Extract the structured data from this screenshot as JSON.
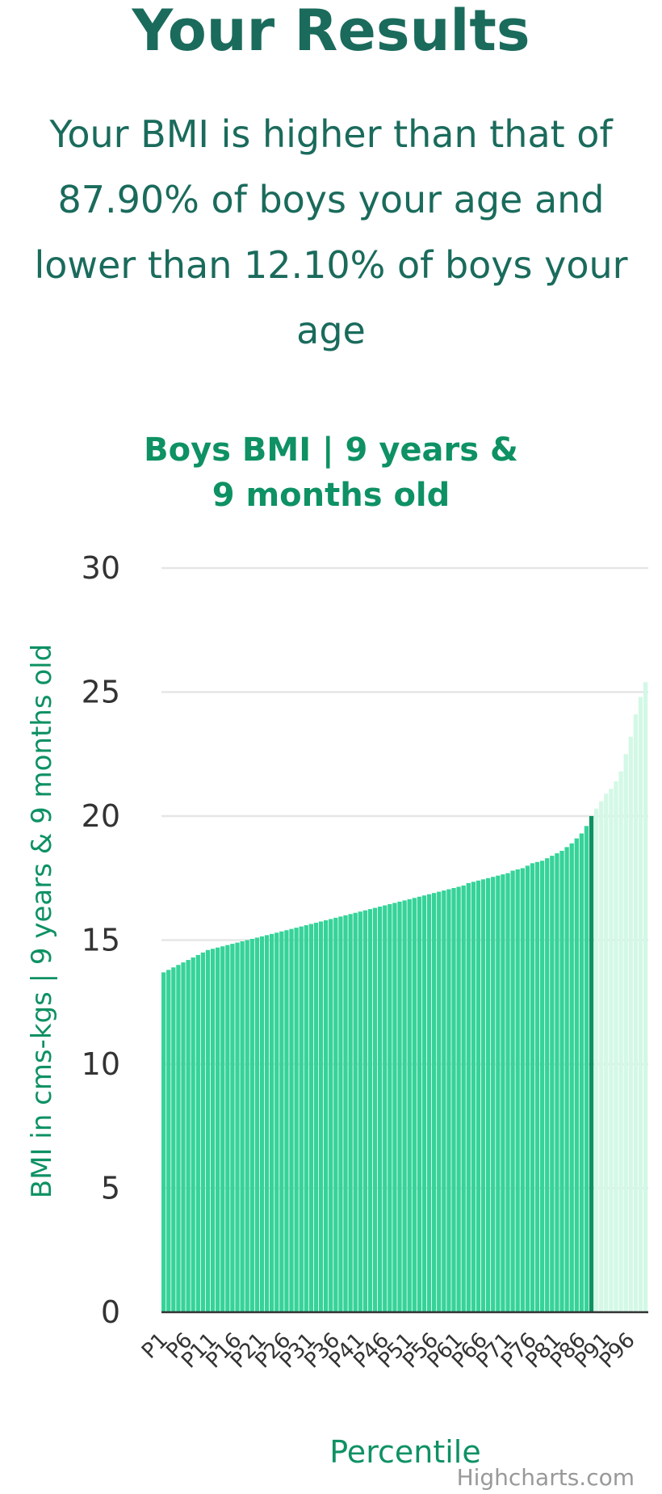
{
  "heading": "Your Results",
  "summary": "Your BMI is higher than that of 87.90% of boys your age and lower than 12.10% of boys your age",
  "credits": "Highcharts.com",
  "colors": {
    "bar": "#36d399",
    "bar_highlight": "#0e9163",
    "bar_above": "#d3f8e6",
    "title": "#0e9163",
    "heading": "#1a6b5c",
    "grid": "#e6e6e6",
    "axis_text": "#333333"
  },
  "chart_data": {
    "type": "bar",
    "title": "Boys BMI | 9 years & 9 months old",
    "xlabel": "Percentile",
    "ylabel": "BMI in cms-kgs | 9 years & 9 months old",
    "ylim": [
      0,
      30
    ],
    "yticks": [
      0,
      5,
      10,
      15,
      20,
      25,
      30
    ],
    "grid": true,
    "highlight_category": "P88",
    "categories": [
      "P1",
      "P2",
      "P3",
      "P4",
      "P5",
      "P6",
      "P7",
      "P8",
      "P9",
      "P10",
      "P11",
      "P12",
      "P13",
      "P14",
      "P15",
      "P16",
      "P17",
      "P18",
      "P19",
      "P20",
      "P21",
      "P22",
      "P23",
      "P24",
      "P25",
      "P26",
      "P27",
      "P28",
      "P29",
      "P30",
      "P31",
      "P32",
      "P33",
      "P34",
      "P35",
      "P36",
      "P37",
      "P38",
      "P39",
      "P40",
      "P41",
      "P42",
      "P43",
      "P44",
      "P45",
      "P46",
      "P47",
      "P48",
      "P49",
      "P50",
      "P51",
      "P52",
      "P53",
      "P54",
      "P55",
      "P56",
      "P57",
      "P58",
      "P59",
      "P60",
      "P61",
      "P62",
      "P63",
      "P64",
      "P65",
      "P66",
      "P67",
      "P68",
      "P69",
      "P70",
      "P71",
      "P72",
      "P73",
      "P74",
      "P75",
      "P76",
      "P77",
      "P78",
      "P79",
      "P80",
      "P81",
      "P82",
      "P83",
      "P84",
      "P85",
      "P86",
      "P87",
      "P88",
      "P89",
      "P90",
      "P91",
      "P92",
      "P93",
      "P94",
      "P95",
      "P96",
      "P97",
      "P98",
      "P99"
    ],
    "category_labels_shown": [
      "P1",
      "P6",
      "P11",
      "P16",
      "P21",
      "P26",
      "P31",
      "P36",
      "P41",
      "P46",
      "P51",
      "P56",
      "P61",
      "P66",
      "P71",
      "P76",
      "P81",
      "P86",
      "P91",
      "P96"
    ],
    "values": [
      13.7,
      13.8,
      13.9,
      14.0,
      14.1,
      14.2,
      14.3,
      14.4,
      14.5,
      14.6,
      14.65,
      14.7,
      14.75,
      14.8,
      14.85,
      14.9,
      14.95,
      15.0,
      15.05,
      15.1,
      15.15,
      15.2,
      15.25,
      15.3,
      15.35,
      15.4,
      15.45,
      15.5,
      15.55,
      15.6,
      15.65,
      15.7,
      15.75,
      15.8,
      15.85,
      15.9,
      15.95,
      16.0,
      16.05,
      16.1,
      16.15,
      16.2,
      16.25,
      16.3,
      16.35,
      16.4,
      16.45,
      16.5,
      16.55,
      16.6,
      16.65,
      16.7,
      16.75,
      16.8,
      16.85,
      16.9,
      16.95,
      17.0,
      17.05,
      17.1,
      17.15,
      17.2,
      17.3,
      17.35,
      17.4,
      17.45,
      17.5,
      17.55,
      17.6,
      17.65,
      17.7,
      17.8,
      17.85,
      17.9,
      18.0,
      18.1,
      18.15,
      18.2,
      18.3,
      18.4,
      18.5,
      18.6,
      18.75,
      18.9,
      19.1,
      19.3,
      19.6,
      20.0,
      20.3,
      20.6,
      20.9,
      21.1,
      21.4,
      21.8,
      22.5,
      23.2,
      24.1,
      24.8,
      25.4
    ]
  }
}
